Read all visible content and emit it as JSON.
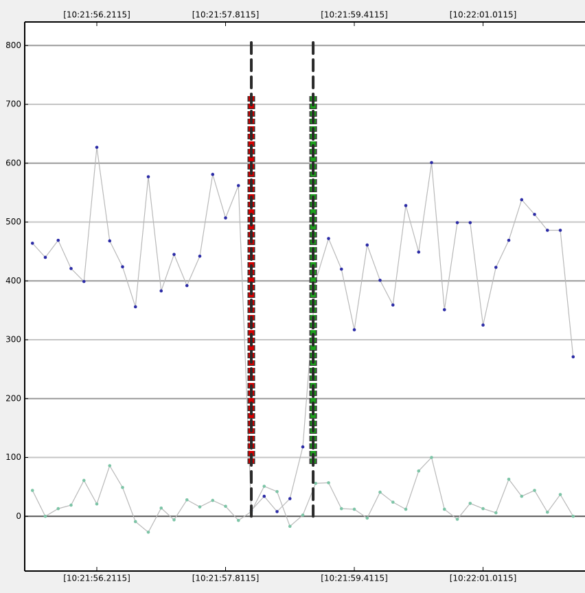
{
  "chart_data": {
    "type": "line",
    "x": [
      55.4115,
      55.5715,
      55.7315,
      55.8915,
      56.0515,
      56.2115,
      56.3715,
      56.5315,
      56.6915,
      56.8515,
      57.0115,
      57.1715,
      57.3315,
      57.4915,
      57.6515,
      57.8115,
      57.9715,
      58.1315,
      58.2915,
      58.4515,
      58.6115,
      58.7715,
      58.9315,
      59.0915,
      59.2515,
      59.4115,
      59.5715,
      59.7315,
      59.8915,
      60.0515,
      60.2115,
      60.3715,
      60.5315,
      60.6915,
      60.8515,
      61.0115,
      61.1715,
      61.3315,
      61.4915,
      61.6515,
      61.8115,
      61.9715,
      62.1315
    ],
    "series": [
      {
        "color": "#2b2ba6",
        "line_color": "#b8b8b8",
        "values": [
          464,
          440,
          469,
          421,
          399,
          627,
          468,
          424,
          356,
          577,
          383,
          445,
          392,
          442,
          581,
          507,
          562,
          10,
          34,
          8,
          30,
          118,
          400,
          472,
          420,
          317,
          461,
          401,
          359,
          528,
          449,
          601,
          351,
          499,
          499,
          325,
          423,
          469,
          538,
          513,
          486,
          486,
          271
        ]
      },
      {
        "color": "#7cc4a6",
        "line_color": "#b8b8b8",
        "values": [
          44,
          0,
          13,
          19,
          61,
          21,
          86,
          49,
          -9,
          -27,
          14,
          -6,
          28,
          16,
          27,
          17,
          -7,
          8,
          51,
          42,
          -17,
          2,
          56,
          57,
          13,
          12,
          -3,
          41,
          24,
          12,
          77,
          100,
          12,
          -5,
          22,
          13,
          6,
          63,
          34,
          44,
          7,
          37,
          0
        ]
      }
    ],
    "xlim": [
      55.3155,
      62.2785
    ],
    "xticks": [
      {
        "value": 56.2115,
        "label": "[10:21:56.2115]"
      },
      {
        "value": 57.8115,
        "label": "[10:21:57.8115]"
      },
      {
        "value": 59.4115,
        "label": "[10:21:59.4115]"
      },
      {
        "value": 61.0115,
        "label": "[10:22:01.0115]"
      }
    ],
    "ylim": [
      -93,
      840
    ],
    "yticks": [
      0,
      100,
      200,
      300,
      400,
      500,
      600,
      700,
      800
    ],
    "grid": true,
    "cursors": [
      {
        "x": 58.1315,
        "color": "#d40000"
      },
      {
        "x": 58.9,
        "color": "#1ea01e"
      }
    ],
    "cursor_range": [
      0,
      805
    ],
    "band_range": [
      88,
      714
    ]
  }
}
